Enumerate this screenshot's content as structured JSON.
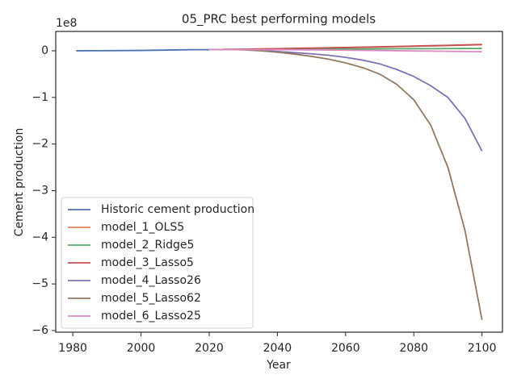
{
  "chart_data": {
    "type": "line",
    "title": "05_PRC best performing models",
    "x_label": "Year",
    "y_label": "Cement production",
    "offset_label": "1e8",
    "xlim": [
      1975,
      2106
    ],
    "ylim": [
      -603500000,
      41500000
    ],
    "xticks": [
      1980,
      2000,
      2020,
      2040,
      2060,
      2080,
      2100
    ],
    "yticks": [
      {
        "value": 0,
        "label": "0"
      },
      {
        "value": -100000000,
        "label": "−1"
      },
      {
        "value": -200000000,
        "label": "−2"
      },
      {
        "value": -300000000,
        "label": "−3"
      },
      {
        "value": -400000000,
        "label": "−4"
      },
      {
        "value": -500000000,
        "label": "−5"
      },
      {
        "value": -600000000,
        "label": "−6"
      }
    ],
    "legend": "lower left",
    "series": [
      {
        "name": "Historic cement production",
        "color": "#4c72b0",
        "x": [
          1981,
          1990,
          2000,
          2010,
          2015,
          2020
        ],
        "values": [
          100000,
          300000,
          800000,
          1800000,
          2400000,
          2400000
        ]
      },
      {
        "name": "model_1_OLS5",
        "color": "#dd8452",
        "x": [
          2020,
          2025,
          2030,
          2035,
          2040,
          2045,
          2050,
          2055,
          2060,
          2065,
          2070,
          2075,
          2080,
          2085,
          2090,
          2095,
          2100
        ],
        "values": [
          2400000,
          2900000,
          3400000,
          3900000,
          4400000,
          5000000,
          5600000,
          6200000,
          6800000,
          7500000,
          8200000,
          8900000,
          9700000,
          10500000,
          11300000,
          12100000,
          13000000
        ]
      },
      {
        "name": "model_2_Ridge5",
        "color": "#55a868",
        "x": [
          2020,
          2025,
          2030,
          2035,
          2040,
          2045,
          2050,
          2055,
          2060,
          2065,
          2070,
          2075,
          2080,
          2085,
          2090,
          2095,
          2100
        ],
        "values": [
          2400000,
          2600000,
          2800000,
          3000000,
          3200000,
          3300000,
          3500000,
          3700000,
          3800000,
          4000000,
          4200000,
          4300000,
          4500000,
          4600000,
          4800000,
          4900000,
          5000000
        ]
      },
      {
        "name": "model_3_Lasso5",
        "color": "#c44e52",
        "x": [
          2020,
          2025,
          2030,
          2035,
          2040,
          2045,
          2050,
          2055,
          2060,
          2065,
          2070,
          2075,
          2080,
          2085,
          2090,
          2095,
          2100
        ],
        "values": [
          2400000,
          2900000,
          3400000,
          4000000,
          4600000,
          5200000,
          5800000,
          6400000,
          7100000,
          7800000,
          8500000,
          9300000,
          10100000,
          10900000,
          11700000,
          12600000,
          13500000
        ]
      },
      {
        "name": "model_4_Lasso26",
        "color": "#8172b3",
        "x": [
          2020,
          2025,
          2030,
          2035,
          2040,
          2045,
          2050,
          2055,
          2060,
          2065,
          2070,
          2075,
          2080,
          2085,
          2090,
          2095,
          2100
        ],
        "values": [
          2400000,
          3000000,
          2500000,
          1000000,
          -1500000,
          -4000000,
          -6500000,
          -9500000,
          -14000000,
          -20000000,
          -28000000,
          -40000000,
          -55000000,
          -75000000,
          -100000000,
          -145000000,
          -215000000
        ]
      },
      {
        "name": "model_5_Lasso62",
        "color": "#937860",
        "x": [
          2020,
          2025,
          2030,
          2035,
          2040,
          2045,
          2050,
          2055,
          2060,
          2065,
          2070,
          2075,
          2080,
          2085,
          2090,
          2095,
          2100
        ],
        "values": [
          2400000,
          3000000,
          2000000,
          0,
          -3000000,
          -7000000,
          -12000000,
          -18000000,
          -26000000,
          -36000000,
          -50000000,
          -72000000,
          -105000000,
          -160000000,
          -250000000,
          -385000000,
          -577000000
        ]
      },
      {
        "name": "model_6_Lasso25",
        "color": "#da8bc3",
        "x": [
          2020,
          2025,
          2030,
          2035,
          2040,
          2045,
          2050,
          2055,
          2060,
          2065,
          2070,
          2075,
          2080,
          2085,
          2090,
          2095,
          2100
        ],
        "values": [
          2400000,
          2500000,
          2500000,
          2400000,
          2300000,
          2100000,
          1900000,
          1600000,
          1300000,
          900000,
          500000,
          100000,
          -300000,
          -700000,
          -1100000,
          -1500000,
          -2000000
        ]
      }
    ]
  }
}
